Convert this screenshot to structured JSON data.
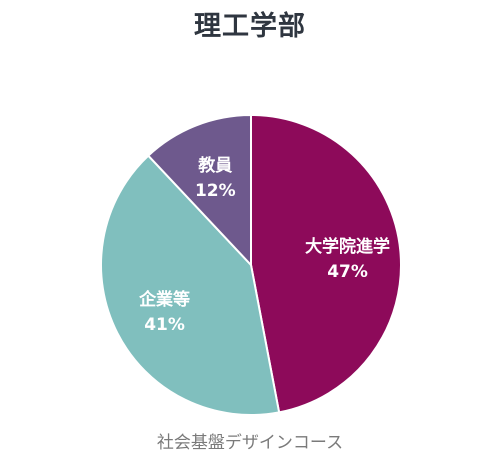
{
  "chart_data": {
    "type": "pie",
    "title": "理工学部",
    "subtitle": "社会基盤デザインコース",
    "slices": [
      {
        "name": "大学院進学",
        "value": 47,
        "label": "47%",
        "color": "#8d0a5a"
      },
      {
        "name": "企業等",
        "value": 41,
        "label": "41%",
        "color": "#80bfbe"
      },
      {
        "name": "教員",
        "value": 12,
        "label": "12%",
        "color": "#6e598d"
      }
    ],
    "start": "12 o'clock",
    "direction": "clockwise",
    "slice_border_color": "#ffffff",
    "legend": "none"
  }
}
